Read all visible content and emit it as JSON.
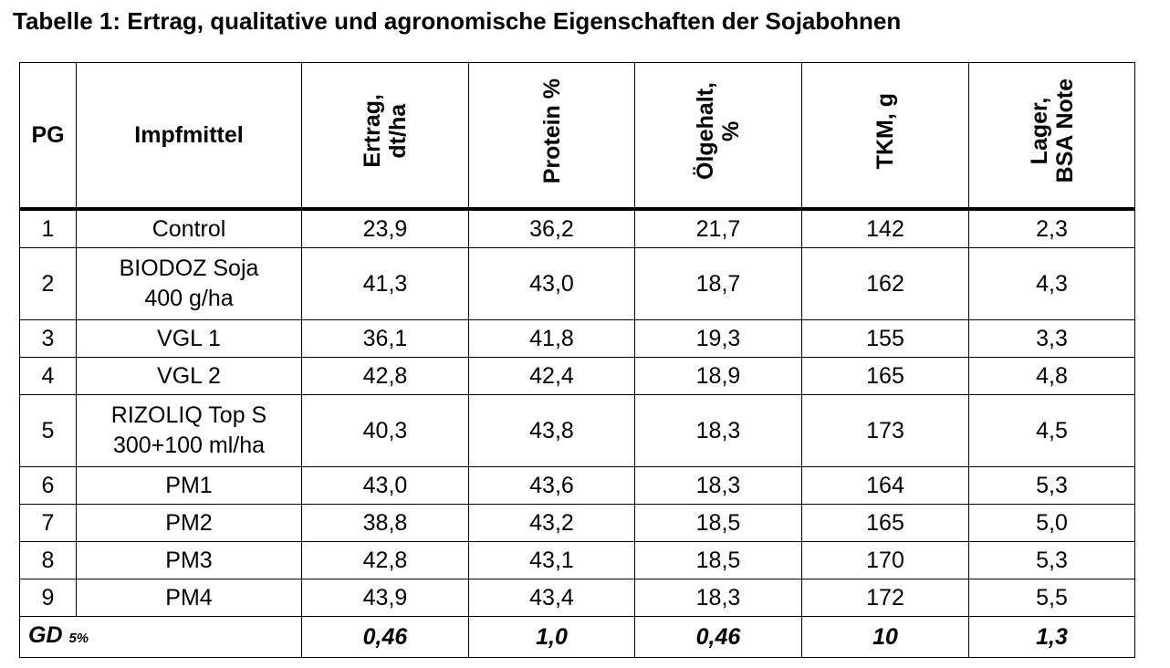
{
  "title": "Tabelle 1: Ertrag, qualitative und agronomische Eigenschaften der Sojabohnen",
  "headers": {
    "pg": "PG",
    "impfmittel": "Impfmittel",
    "ertrag": [
      "Ertrag,",
      "dt/ha"
    ],
    "protein": "Protein %",
    "oelgehalt": [
      "Ölgehalt,",
      "%"
    ],
    "tkm": "TKM, g",
    "lager": [
      "Lager,",
      "BSA Note"
    ]
  },
  "rows": [
    {
      "pg": "1",
      "impf": [
        "Control"
      ],
      "ertrag": "23,9",
      "protein": "36,2",
      "oel": "21,7",
      "tkm": "142",
      "lager": "2,3"
    },
    {
      "pg": "2",
      "impf": [
        "BIODOZ Soja",
        "400 g/ha"
      ],
      "ertrag": "41,3",
      "protein": "43,0",
      "oel": "18,7",
      "tkm": "162",
      "lager": "4,3"
    },
    {
      "pg": "3",
      "impf": [
        "VGL 1"
      ],
      "ertrag": "36,1",
      "protein": "41,8",
      "oel": "19,3",
      "tkm": "155",
      "lager": "3,3"
    },
    {
      "pg": "4",
      "impf": [
        "VGL 2"
      ],
      "ertrag": "42,8",
      "protein": "42,4",
      "oel": "18,9",
      "tkm": "165",
      "lager": "4,8"
    },
    {
      "pg": "5",
      "impf": [
        "RIZOLIQ Top S",
        "300+100 ml/ha"
      ],
      "ertrag": "40,3",
      "protein": "43,8",
      "oel": "18,3",
      "tkm": "173",
      "lager": "4,5"
    },
    {
      "pg": "6",
      "impf": [
        "PM1"
      ],
      "ertrag": "43,0",
      "protein": "43,6",
      "oel": "18,3",
      "tkm": "164",
      "lager": "5,3"
    },
    {
      "pg": "7",
      "impf": [
        "PM2"
      ],
      "ertrag": "38,8",
      "protein": "43,2",
      "oel": "18,5",
      "tkm": "165",
      "lager": "5,0"
    },
    {
      "pg": "8",
      "impf": [
        "PM3"
      ],
      "ertrag": "42,8",
      "protein": "43,1",
      "oel": "18,5",
      "tkm": "170",
      "lager": "5,3"
    },
    {
      "pg": "9",
      "impf": [
        "PM4"
      ],
      "ertrag": "43,9",
      "protein": "43,4",
      "oel": "18,3",
      "tkm": "172",
      "lager": "5,5"
    }
  ],
  "gd": {
    "label": "GD",
    "sub": "5%",
    "ertrag": "0,46",
    "protein": "1,0",
    "oel": "0,46",
    "tkm": "10",
    "lager": "1,3"
  }
}
